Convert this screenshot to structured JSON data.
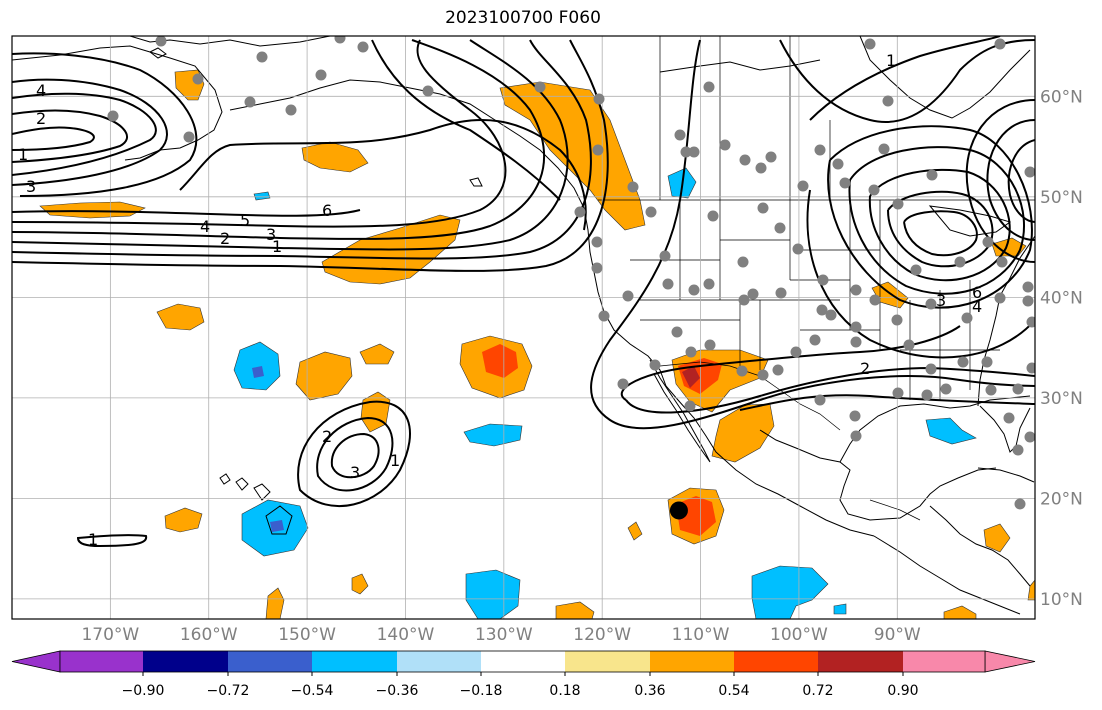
{
  "title": "2023100700 F060",
  "map": {
    "type": "plate-carree",
    "lon_range": [
      -180,
      -76
    ],
    "lat_range": [
      8,
      66
    ],
    "grid": true
  },
  "lon_ticks": [
    "170°W",
    "160°W",
    "150°W",
    "140°W",
    "130°W",
    "120°W",
    "110°W",
    "100°W",
    "90°W"
  ],
  "lat_ticks": [
    "10°N",
    "20°N",
    "30°N",
    "40°N",
    "50°N",
    "60°N"
  ],
  "colorbar": {
    "labels": [
      "−0.90",
      "−0.72",
      "−0.54",
      "−0.36",
      "−0.18",
      "0.18",
      "0.36",
      "0.54",
      "0.72",
      "0.90"
    ],
    "colors": [
      "#9932CC",
      "#00008B",
      "#3A5FCD",
      "#00BFFF",
      "#B0E0F8",
      "#FFFFFF",
      "#F8E58C",
      "#FFA500",
      "#FF4500",
      "#B22222",
      "#F888AA"
    ]
  },
  "contour_labels": [
    "1",
    "2",
    "3",
    "4",
    "5",
    "6"
  ],
  "colors": {
    "positive_low": "#FFA500",
    "positive_mid": "#FF4500",
    "negative_low": "#00BFFF",
    "negative_mid": "#3A5FCD",
    "stations": "#808080",
    "grid": "#B0B0B0"
  },
  "marked_point": {
    "lon": -112.2,
    "lat": 18.8
  }
}
